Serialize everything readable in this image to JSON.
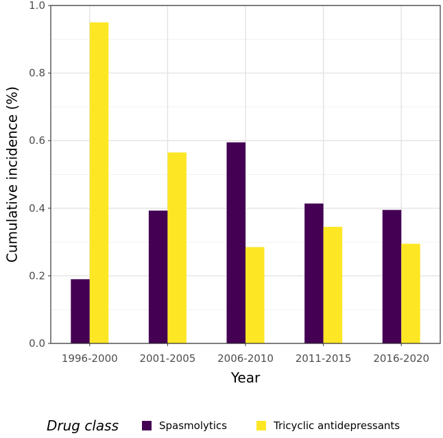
{
  "chart_data": {
    "type": "bar",
    "title": "",
    "xlabel": "Year",
    "ylabel": "Cumulative incidence (%)",
    "categories": [
      "1996-2000",
      "2001-2005",
      "2006-2010",
      "2011-2015",
      "2016-2020"
    ],
    "series": [
      {
        "name": "Spasmolytics",
        "color": "#440154",
        "values": [
          0.19,
          0.393,
          0.595,
          0.414,
          0.395
        ]
      },
      {
        "name": "Tricyclic antidepressants",
        "color": "#FDE725",
        "values": [
          0.95,
          0.565,
          0.285,
          0.345,
          0.295
        ]
      }
    ],
    "ylim": [
      0,
      1.0
    ],
    "yticks": [
      0.0,
      0.2,
      0.4,
      0.6,
      0.8,
      1.0
    ],
    "ytick_labels": [
      "0.0",
      "0.2",
      "0.4",
      "0.6",
      "0.8",
      "1.0"
    ],
    "grid": true,
    "legend": {
      "title": "Drug class",
      "position": "bottom"
    }
  }
}
